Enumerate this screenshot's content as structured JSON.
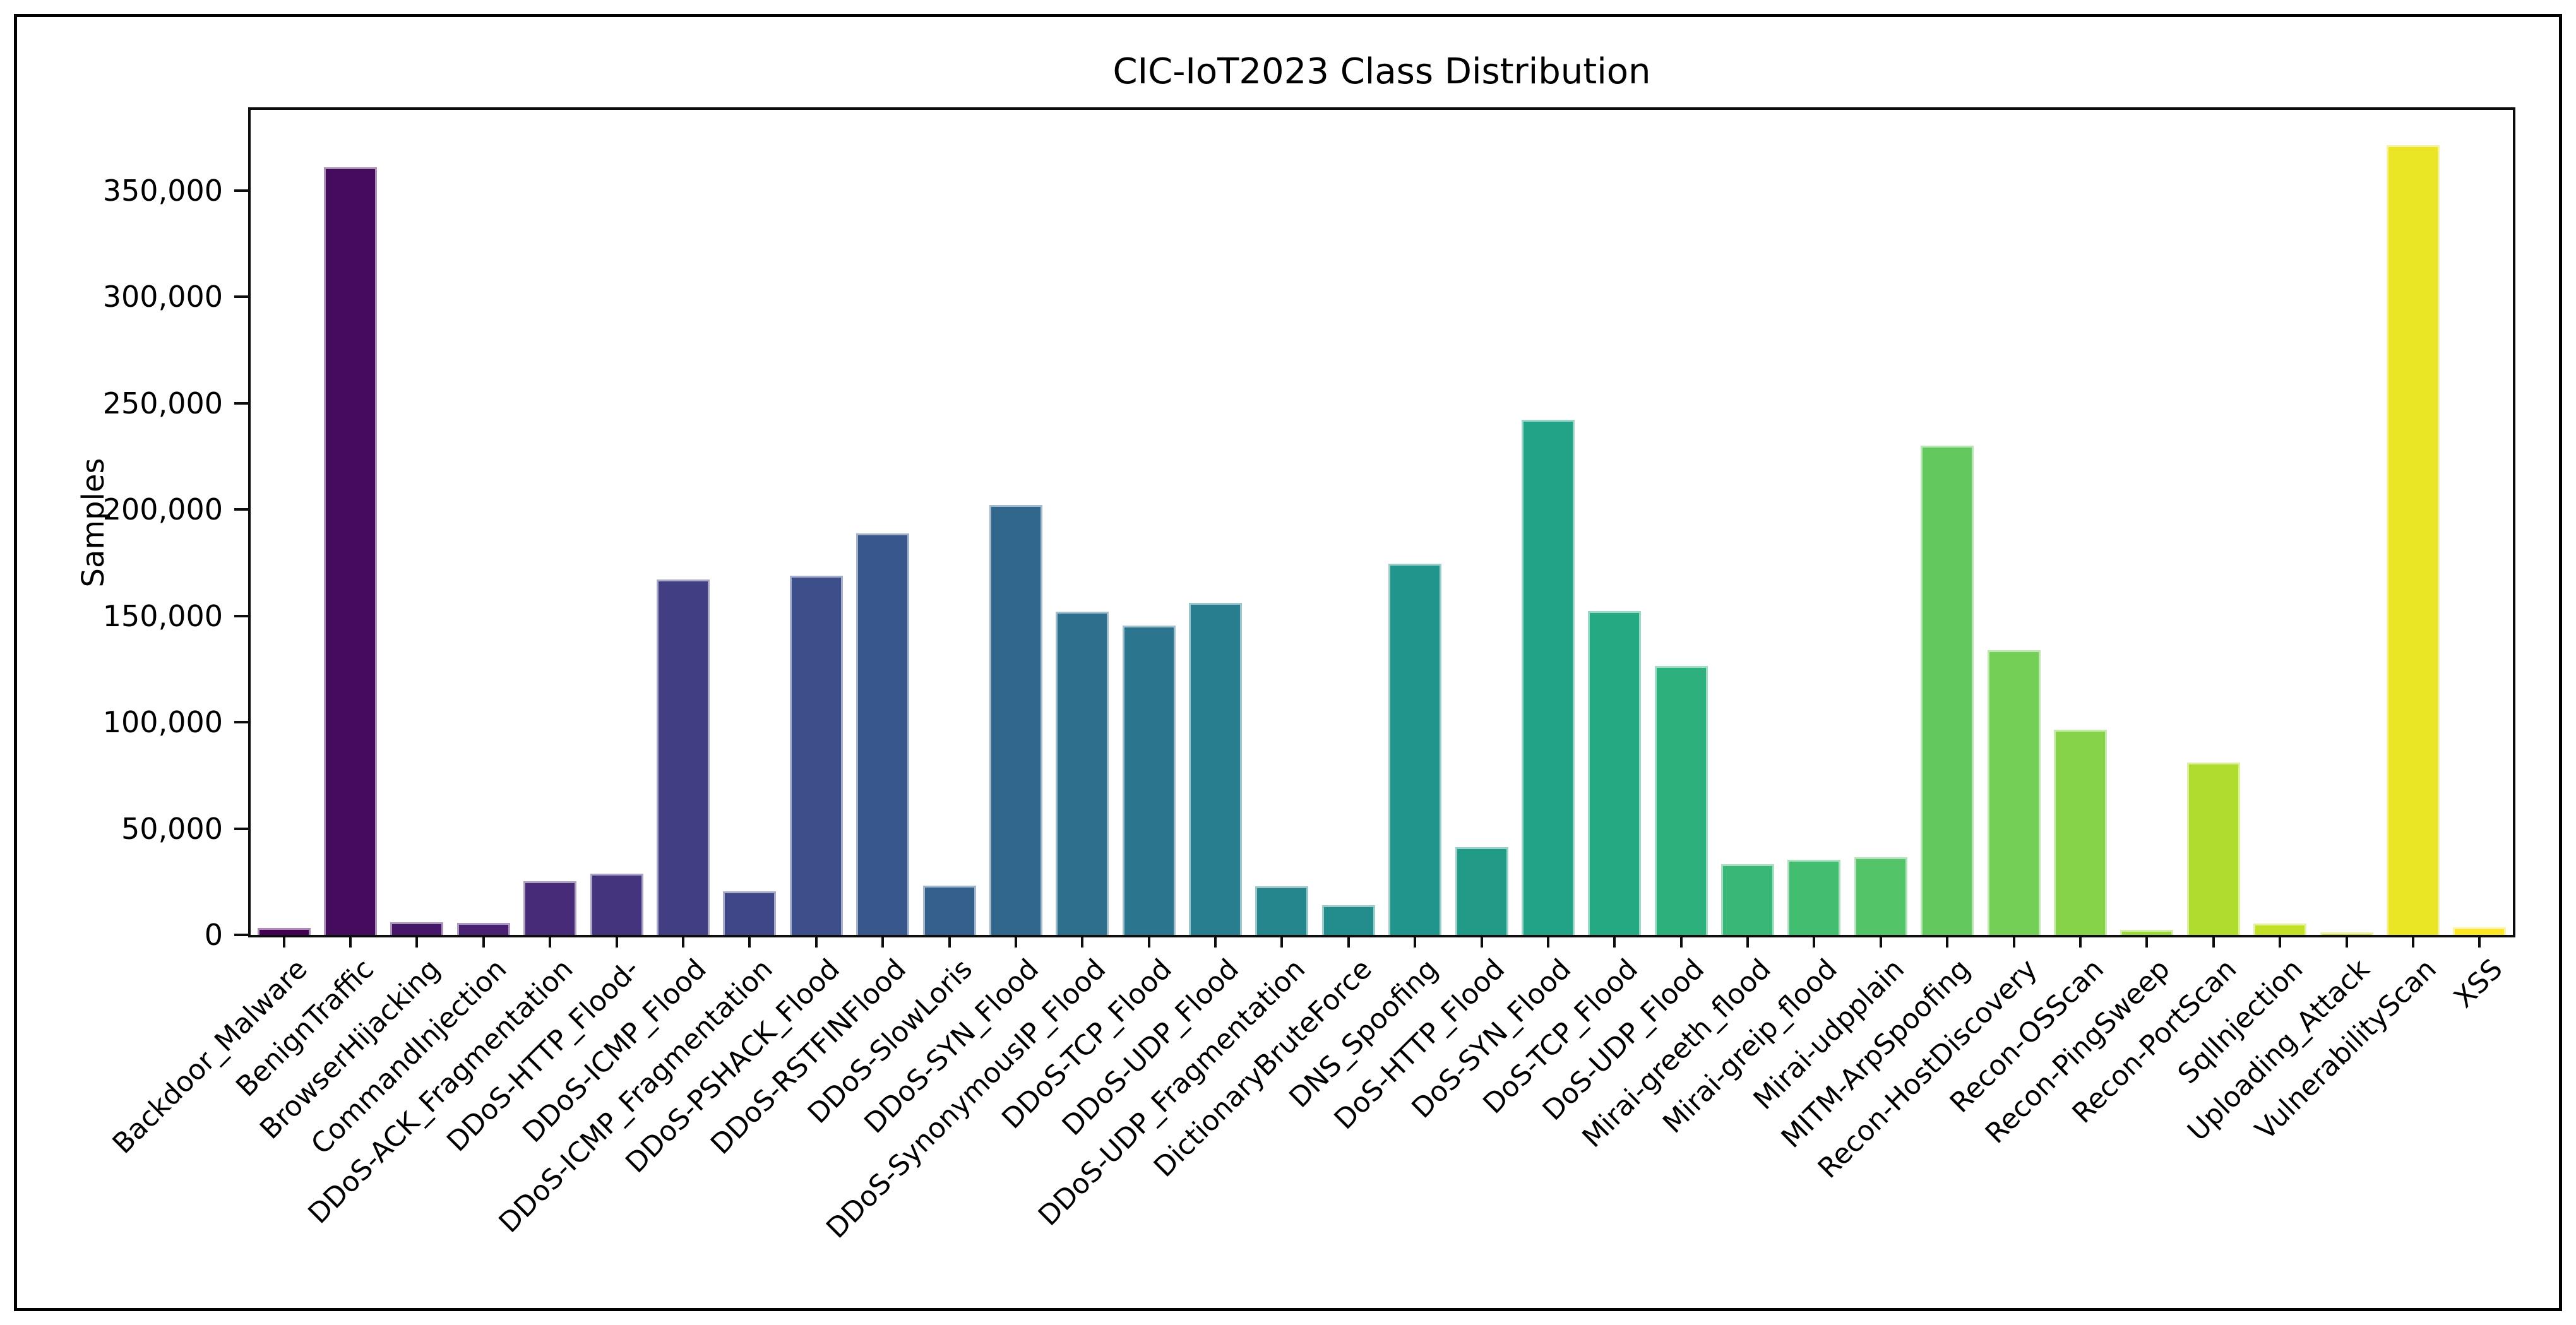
{
  "figure": {
    "title": "CIC-IoT2023 Class Distribution",
    "background_color": "#ffffff",
    "frame_color": "#000000",
    "axis_color": "#0d0d0d",
    "text_color": "#000000"
  },
  "chart_data": {
    "type": "bar",
    "title": "CIC-IoT2023 Class Distribution",
    "xlabel": "",
    "ylabel": "Samples",
    "ylim": [
      0,
      388000
    ],
    "yticks": [
      0,
      50000,
      100000,
      150000,
      200000,
      250000,
      300000,
      350000
    ],
    "ytick_format": "comma",
    "grid": false,
    "legend": null,
    "palette": "viridis",
    "bar_edge_highlight": "rgba(255,255,255,0.55)",
    "x_label_rotation_deg": 45,
    "categories": [
      "Backdoor_Malware",
      "BenignTraffic",
      "BrowserHijacking",
      "CommandInjection",
      "DDoS-ACK_Fragmentation",
      "DDoS-HTTP_Flood-",
      "DDoS-ICMP_Flood",
      "DDoS-ICMP_Fragmentation",
      "DDoS-PSHACK_Flood",
      "DDoS-RSTFINFlood",
      "DDoS-SlowLoris",
      "DDoS-SYN_Flood",
      "DDoS-SynonymousIP_Flood",
      "DDoS-TCP_Flood",
      "DDoS-UDP_Flood",
      "DDoS-UDP_Fragmentation",
      "DictionaryBruteForce",
      "DNS_Spoofing",
      "DoS-HTTP_Flood",
      "DoS-SYN_Flood",
      "DoS-TCP_Flood",
      "DoS-UDP_Flood",
      "Mirai-greeth_flood",
      "Mirai-greip_flood",
      "Mirai-udpplain",
      "MITM-ArpSpoofing",
      "Recon-HostDiscovery",
      "Recon-OSScan",
      "Recon-PingSweep",
      "Recon-PortScan",
      "SqlInjection",
      "Uploading_Attack",
      "VulnerabilityScan",
      "XSS"
    ],
    "values": [
      3400,
      361000,
      5900,
      5600,
      25200,
      28700,
      167000,
      20600,
      169000,
      188700,
      23100,
      202200,
      152100,
      145400,
      156100,
      22800,
      14000,
      174600,
      41400,
      242100,
      152200,
      126600,
      33200,
      35200,
      36600,
      230000,
      134000,
      96500,
      2500,
      81000,
      5400,
      1200,
      371500,
      3700
    ],
    "colors": [
      "#440154",
      "#450c5e",
      "#461668",
      "#482172",
      "#472b79",
      "#44347e",
      "#423e84",
      "#404788",
      "#3c4f8a",
      "#38588b",
      "#35608d",
      "#31678d",
      "#2e6f8e",
      "#2b768e",
      "#287e8e",
      "#25868d",
      "#228d8c",
      "#21948b",
      "#219b88",
      "#22a286",
      "#24a983",
      "#2eb07d",
      "#39b777",
      "#43be71",
      "#53c468",
      "#63c95e",
      "#73cf55",
      "#86d349",
      "#9ad83c",
      "#afdc2f",
      "#c3e026",
      "#d6e226",
      "#eae525",
      "#fde725"
    ]
  }
}
